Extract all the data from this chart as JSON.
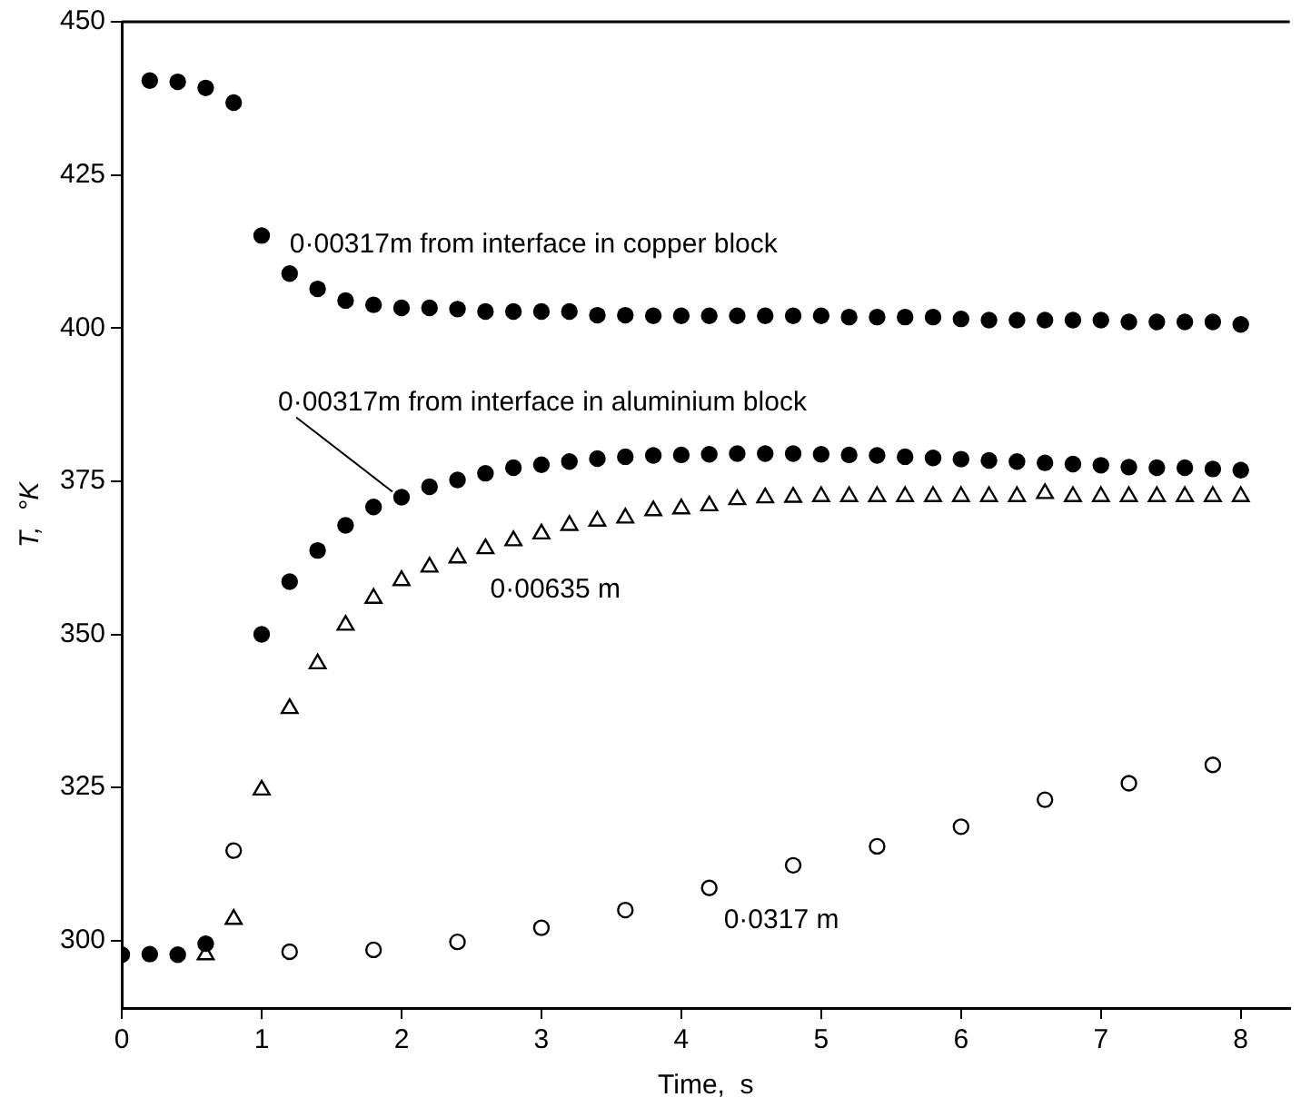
{
  "chart_data": {
    "type": "scatter",
    "xlabel": "Time,  s",
    "ylabel": "T,  °K",
    "xlim": [
      0,
      8.35
    ],
    "xticks": [
      0,
      1,
      2,
      3,
      4,
      5,
      6,
      7,
      8
    ],
    "ylim": [
      289,
      450
    ],
    "yticks": [
      300,
      325,
      350,
      375,
      400,
      425,
      450
    ],
    "grid": false,
    "legend": false,
    "series": [
      {
        "name": "0·00317m from interface in copper block",
        "color": "#000000",
        "marker": "circle",
        "x": [
          0.2,
          0.4,
          0.6,
          0.8,
          1.0,
          1.2,
          1.4,
          1.6,
          1.8,
          2.0,
          2.2,
          2.4,
          2.6,
          2.8,
          3.0,
          3.2,
          3.4,
          3.6,
          3.8,
          4.0,
          4.2,
          4.4,
          4.6,
          4.8,
          5.0,
          5.2,
          5.4,
          5.6,
          5.8,
          6.0,
          6.2,
          6.4,
          6.6,
          6.8,
          7.0,
          7.2,
          7.4,
          7.6,
          7.8,
          8.0
        ],
        "values": [
          440.4,
          440.2,
          439.2,
          436.8,
          415.1,
          408.9,
          406.4,
          404.5,
          403.8,
          403.3,
          403.3,
          403.1,
          402.7,
          402.7,
          402.7,
          402.7,
          402.1,
          402.1,
          402.0,
          402.0,
          402.0,
          402.0,
          402.0,
          402.0,
          402.0,
          401.8,
          401.8,
          401.8,
          401.8,
          401.5,
          401.3,
          401.3,
          401.3,
          401.3,
          401.3,
          401.0,
          401.0,
          401.0,
          401.0,
          400.6
        ]
      },
      {
        "name": "0·00317m from interface in aluminium block",
        "color": "#000000",
        "marker": "circle",
        "x": [
          0,
          0.2,
          0.4,
          0.6,
          1.0,
          1.2,
          1.4,
          1.6,
          1.8,
          2.0,
          2.2,
          2.4,
          2.6,
          2.8,
          3.0,
          3.2,
          3.4,
          3.6,
          3.8,
          4.0,
          4.2,
          4.4,
          4.6,
          4.8,
          5.0,
          5.2,
          5.4,
          5.6,
          5.8,
          6.0,
          6.2,
          6.4,
          6.6,
          6.8,
          7.0,
          7.2,
          7.4,
          7.6,
          7.8,
          8.0
        ],
        "values": [
          297.7,
          297.8,
          297.7,
          299.5,
          350.0,
          358.6,
          363.7,
          367.8,
          370.8,
          372.4,
          374.1,
          375.2,
          376.3,
          377.2,
          377.7,
          378.2,
          378.7,
          379.0,
          379.2,
          379.3,
          379.4,
          379.5,
          379.5,
          379.5,
          379.4,
          379.3,
          379.2,
          379.0,
          378.8,
          378.6,
          378.4,
          378.2,
          378.0,
          377.8,
          377.6,
          377.3,
          377.2,
          377.2,
          377.0,
          376.8
        ]
      },
      {
        "name": "0·00635 m",
        "color": "#000000",
        "marker": "triangle",
        "x": [
          0.6,
          0.8,
          1.0,
          1.2,
          1.4,
          1.6,
          1.8,
          2.0,
          2.2,
          2.4,
          2.6,
          2.8,
          3.0,
          3.2,
          3.4,
          3.6,
          3.8,
          4.0,
          4.2,
          4.4,
          4.6,
          4.8,
          5.0,
          5.2,
          5.4,
          5.6,
          5.8,
          6.0,
          6.2,
          6.4,
          6.6,
          6.8,
          7.0,
          7.2,
          7.4,
          7.6,
          7.8,
          8.0
        ],
        "values": [
          297.7,
          303.5,
          324.6,
          337.9,
          345.2,
          351.5,
          355.9,
          358.8,
          361.0,
          362.5,
          364.0,
          365.3,
          366.4,
          367.8,
          368.5,
          369.0,
          370.2,
          370.5,
          371.0,
          372.0,
          372.3,
          372.4,
          372.5,
          372.5,
          372.5,
          372.5,
          372.5,
          372.5,
          372.5,
          372.5,
          373.0,
          372.5,
          372.5,
          372.5,
          372.5,
          372.5,
          372.5,
          372.5
        ]
      },
      {
        "name": "0·0317 m",
        "color": "#000000",
        "marker": "circle",
        "x": [
          0.8,
          1.2,
          1.8,
          2.4,
          3.0,
          3.6,
          4.2,
          4.8,
          5.4,
          6.0,
          6.6,
          7.2,
          7.8
        ],
        "values": [
          314.7,
          298.2,
          298.5,
          299.8,
          302.1,
          305.0,
          308.6,
          312.3,
          315.4,
          318.6,
          323.0,
          325.7,
          328.7
        ]
      }
    ]
  }
}
